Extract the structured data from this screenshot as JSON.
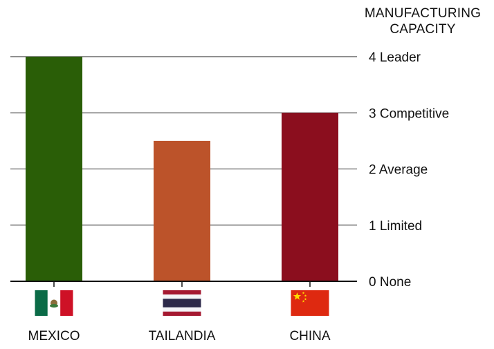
{
  "chart_data": {
    "type": "bar",
    "ylabel": "MANUFACTURING CAPACITY",
    "categories": [
      "MEXICO",
      "TAILANDIA",
      "CHINA"
    ],
    "values": [
      4,
      2.5,
      3
    ],
    "colors": [
      "#2a5e07",
      "#bc532a",
      "#8b0e1e"
    ],
    "flags": [
      "mexico-flag-icon",
      "thailand-flag-icon",
      "china-flag-icon"
    ],
    "ylim": [
      0,
      4
    ],
    "yticks": [
      {
        "value": 0,
        "label": "0 None"
      },
      {
        "value": 1,
        "label": "1 Limited"
      },
      {
        "value": 2,
        "label": "2 Average"
      },
      {
        "value": 3,
        "label": "3 Competitive"
      },
      {
        "value": 4,
        "label": "4 Leader"
      }
    ],
    "grid": true
  }
}
